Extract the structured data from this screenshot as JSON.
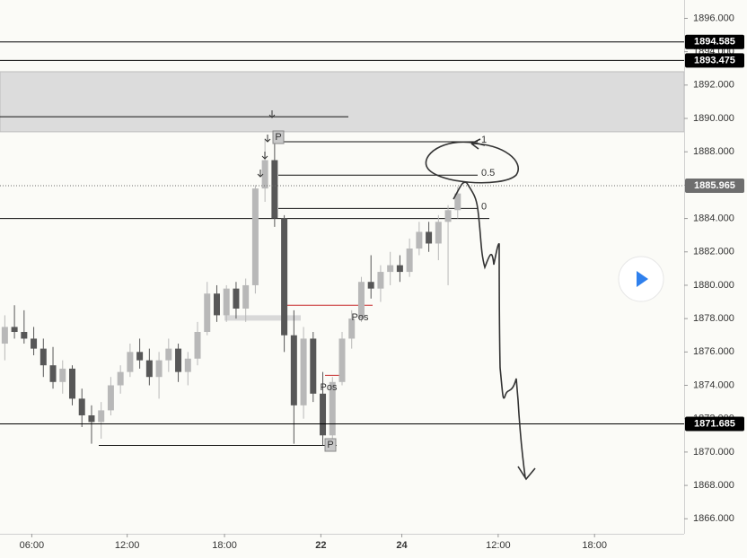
{
  "chart_data": {
    "type": "candlestick",
    "up_color": "#b8b8b8",
    "down_color": "#575757",
    "open": [
      1876.5,
      1877.5,
      1877.2,
      1876.8,
      1876.2,
      1875.2,
      1874.2,
      1875.0,
      1873.2,
      1872.2,
      1871.8,
      1872.5,
      1874.0,
      1874.8,
      1876.0,
      1875.5,
      1874.5,
      1875.5,
      1876.2,
      1874.8,
      1875.6,
      1877.2,
      1879.5,
      1878.2,
      1879.8,
      1878.6,
      1880.0,
      1885.8,
      1887.5,
      1884.0,
      1877.0,
      1872.8,
      1876.8,
      1873.5,
      1871.0,
      1874.2,
      1876.8,
      1878.0,
      1880.2,
      1879.8,
      1880.8,
      1881.2,
      1880.8,
      1882.2,
      1883.2,
      1882.5,
      1883.8,
      1884.5
    ],
    "high": [
      1878.2,
      1878.8,
      1878.5,
      1877.5,
      1876.8,
      1876.3,
      1875.5,
      1875.2,
      1873.8,
      1872.8,
      1873.0,
      1874.5,
      1875.2,
      1876.5,
      1876.8,
      1876.2,
      1876.0,
      1876.8,
      1876.5,
      1876.0,
      1877.8,
      1880.2,
      1880.0,
      1880.0,
      1880.2,
      1880.4,
      1886.0,
      1888.8,
      1888.5,
      1884.2,
      1878.5,
      1877.5,
      1877.2,
      1874.8,
      1874.5,
      1877.2,
      1878.5,
      1880.5,
      1881.8,
      1881.2,
      1882.0,
      1881.8,
      1882.8,
      1883.8,
      1883.8,
      1884.2,
      1884.8,
      1885.9
    ],
    "low": [
      1875.5,
      1876.8,
      1876.5,
      1875.8,
      1874.5,
      1873.8,
      1873.5,
      1872.8,
      1871.5,
      1870.5,
      1870.8,
      1872.2,
      1873.5,
      1874.5,
      1875.0,
      1874.0,
      1873.2,
      1874.8,
      1874.2,
      1874.0,
      1875.2,
      1877.0,
      1877.8,
      1877.8,
      1878.0,
      1877.8,
      1879.5,
      1885.0,
      1883.5,
      1876.0,
      1870.5,
      1872.0,
      1873.0,
      1870.4,
      1870.8,
      1874.0,
      1876.2,
      1877.8,
      1879.2,
      1879.0,
      1880.0,
      1880.2,
      1880.5,
      1881.8,
      1882.0,
      1881.5,
      1880.0,
      1884.0
    ],
    "close": [
      1877.5,
      1877.2,
      1876.8,
      1876.2,
      1875.2,
      1874.2,
      1875.0,
      1873.2,
      1872.2,
      1871.8,
      1872.5,
      1874.0,
      1874.8,
      1876.0,
      1875.5,
      1874.5,
      1875.5,
      1876.2,
      1874.8,
      1875.6,
      1877.2,
      1879.5,
      1878.2,
      1879.8,
      1878.6,
      1880.0,
      1885.8,
      1887.5,
      1884.0,
      1877.0,
      1872.8,
      1876.8,
      1873.5,
      1871.0,
      1874.2,
      1876.8,
      1878.0,
      1880.2,
      1879.8,
      1880.8,
      1881.2,
      1880.8,
      1882.2,
      1883.2,
      1882.5,
      1883.8,
      1884.5,
      1885.5
    ],
    "xlim": [
      0,
      71
    ],
    "xticks": [
      {
        "value": 3.3,
        "label": "06:00"
      },
      {
        "value": 13.2,
        "label": "12:00"
      },
      {
        "value": 23.3,
        "label": "18:00"
      },
      {
        "value": 33.3,
        "label": "22"
      },
      {
        "value": 41.7,
        "label": "24"
      },
      {
        "value": 51.7,
        "label": "12:00"
      },
      {
        "value": 61.7,
        "label": "18:00"
      }
    ],
    "ylim": [
      1865.1,
      1897.1
    ],
    "yticks": [
      {
        "value": 1866,
        "label": "1866.000"
      },
      {
        "value": 1868,
        "label": "1868.000"
      },
      {
        "value": 1870,
        "label": "1870.000"
      },
      {
        "value": 1872,
        "label": "1872.000"
      },
      {
        "value": 1874,
        "label": "1874.000"
      },
      {
        "value": 1876,
        "label": "1876.000"
      },
      {
        "value": 1878,
        "label": "1878.000"
      },
      {
        "value": 1880,
        "label": "1880.000"
      },
      {
        "value": 1882,
        "label": "1882.000"
      },
      {
        "value": 1884,
        "label": "1884.000"
      },
      {
        "value": 1886,
        "label": "1886.000"
      },
      {
        "value": 1888,
        "label": "1888.000"
      },
      {
        "value": 1890,
        "label": "1890.000"
      },
      {
        "value": 1892,
        "label": "1892.000"
      },
      {
        "value": 1894,
        "label": "1894.000"
      },
      {
        "value": 1896,
        "label": "1896.000"
      }
    ],
    "price_lines": [
      {
        "value": 1894.585,
        "color": "#000000"
      },
      {
        "value": 1893.475,
        "color": "#000000"
      },
      {
        "value": 1885.965,
        "color": "#6e6e6e"
      },
      {
        "value": 1871.685,
        "color": "#000000"
      }
    ],
    "zone": [
      1889.2,
      1892.8
    ],
    "levels": [
      1890.1,
      1884.0,
      1870.4
    ],
    "fib": {
      "levels": [
        1,
        0.5,
        0
      ],
      "prices": [
        1888.6,
        1886.6,
        1884.6
      ]
    },
    "annotations": [
      "Pos",
      "Pos",
      "P",
      "P"
    ]
  }
}
